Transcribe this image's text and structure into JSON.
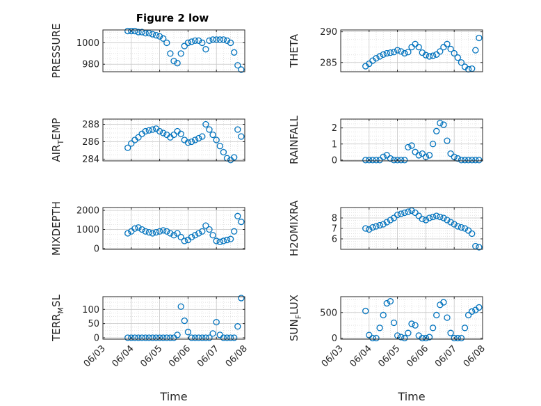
{
  "figure": {
    "title": "Figure 2 low",
    "marker_color": "#0072BD",
    "grid": true
  },
  "chart_data": [
    {
      "type": "scatter",
      "name_key": "pressure",
      "ylabel": "PRESSURE",
      "ylim": [
        973,
        1012
      ],
      "yticks": [
        980,
        1000
      ],
      "x": [
        "06/03 21:00",
        "06/04 00:00",
        "06/04 03:00",
        "06/04 06:00",
        "06/04 09:00",
        "06/04 12:00",
        "06/04 15:00",
        "06/04 18:00",
        "06/04 21:00",
        "06/05 00:00",
        "06/05 03:00",
        "06/05 06:00",
        "06/05 09:00",
        "06/05 12:00",
        "06/05 15:00",
        "06/05 18:00",
        "06/05 21:00",
        "06/06 00:00",
        "06/06 03:00",
        "06/06 06:00",
        "06/06 09:00",
        "06/06 12:00",
        "06/06 15:00",
        "06/06 18:00",
        "06/06 21:00",
        "06/07 00:00",
        "06/07 03:00",
        "06/07 06:00",
        "06/07 09:00",
        "06/07 12:00",
        "06/07 15:00",
        "06/07 18:00",
        "06/07 21:00"
      ],
      "y": [
        1011,
        1011,
        1011,
        1010,
        1010,
        1009,
        1009,
        1008,
        1007,
        1006,
        1004,
        1000,
        990,
        983,
        981,
        990,
        997,
        1000,
        1001,
        1002,
        1002,
        1000,
        994,
        1002,
        1003,
        1003,
        1003,
        1003,
        1002,
        1000,
        991,
        979,
        975
      ]
    },
    {
      "type": "scatter",
      "name_key": "theta",
      "ylabel": "THETA",
      "ylim": [
        283.5,
        290.3
      ],
      "yticks": [
        285,
        290
      ],
      "x": [
        "06/03 21:00",
        "06/04 00:00",
        "06/04 03:00",
        "06/04 06:00",
        "06/04 09:00",
        "06/04 12:00",
        "06/04 15:00",
        "06/04 18:00",
        "06/04 21:00",
        "06/05 00:00",
        "06/05 03:00",
        "06/05 06:00",
        "06/05 09:00",
        "06/05 12:00",
        "06/05 15:00",
        "06/05 18:00",
        "06/05 21:00",
        "06/06 00:00",
        "06/06 03:00",
        "06/06 06:00",
        "06/06 09:00",
        "06/06 12:00",
        "06/06 15:00",
        "06/06 18:00",
        "06/06 21:00",
        "06/07 00:00",
        "06/07 03:00",
        "06/07 06:00",
        "06/07 09:00",
        "06/07 12:00",
        "06/07 15:00",
        "06/07 18:00",
        "06/07 21:00"
      ],
      "y": [
        284.4,
        284.8,
        285.3,
        285.7,
        286.0,
        286.3,
        286.5,
        286.6,
        286.7,
        287.0,
        286.8,
        286.5,
        286.7,
        287.5,
        288.0,
        287.5,
        286.6,
        286.2,
        286.0,
        286.1,
        286.3,
        286.8,
        287.5,
        288.0,
        287.2,
        286.5,
        285.8,
        285.0,
        284.3,
        283.9,
        284.0,
        287.0,
        289.0
      ]
    },
    {
      "type": "scatter",
      "name_key": "air_temp",
      "ylabel": "AIR_TEMP",
      "ylabel_display": {
        "base": "AIR",
        "sub": "T",
        "rest": "EMP"
      },
      "ylim": [
        283.8,
        288.6
      ],
      "yticks": [
        284,
        286,
        288
      ],
      "x": [
        "06/03 21:00",
        "06/04 00:00",
        "06/04 03:00",
        "06/04 06:00",
        "06/04 09:00",
        "06/04 12:00",
        "06/04 15:00",
        "06/04 18:00",
        "06/04 21:00",
        "06/05 00:00",
        "06/05 03:00",
        "06/05 06:00",
        "06/05 09:00",
        "06/05 12:00",
        "06/05 15:00",
        "06/05 18:00",
        "06/05 21:00",
        "06/06 00:00",
        "06/06 03:00",
        "06/06 06:00",
        "06/06 09:00",
        "06/06 12:00",
        "06/06 15:00",
        "06/06 18:00",
        "06/06 21:00",
        "06/07 00:00",
        "06/07 03:00",
        "06/07 06:00",
        "06/07 09:00",
        "06/07 12:00",
        "06/07 15:00",
        "06/07 18:00",
        "06/07 21:00"
      ],
      "y": [
        285.3,
        285.8,
        286.2,
        286.5,
        286.9,
        287.2,
        287.3,
        287.4,
        287.5,
        287.2,
        287.0,
        286.8,
        286.5,
        286.8,
        287.2,
        286.9,
        286.2,
        285.9,
        286.0,
        286.2,
        286.4,
        286.6,
        288.0,
        287.4,
        286.8,
        286.2,
        285.5,
        284.8,
        284.1,
        283.9,
        284.2,
        287.4,
        286.6
      ]
    },
    {
      "type": "scatter",
      "name_key": "rainfall",
      "ylabel": "RAINFALL",
      "ylim": [
        -0.05,
        2.55
      ],
      "yticks": [
        0,
        1,
        2
      ],
      "x": [
        "06/03 21:00",
        "06/04 00:00",
        "06/04 03:00",
        "06/04 06:00",
        "06/04 09:00",
        "06/04 12:00",
        "06/04 15:00",
        "06/04 18:00",
        "06/04 21:00",
        "06/05 00:00",
        "06/05 03:00",
        "06/05 06:00",
        "06/05 09:00",
        "06/05 12:00",
        "06/05 15:00",
        "06/05 18:00",
        "06/05 21:00",
        "06/06 00:00",
        "06/06 03:00",
        "06/06 06:00",
        "06/06 09:00",
        "06/06 12:00",
        "06/06 15:00",
        "06/06 18:00",
        "06/06 21:00",
        "06/07 00:00",
        "06/07 03:00",
        "06/07 06:00",
        "06/07 09:00",
        "06/07 12:00",
        "06/07 15:00",
        "06/07 18:00",
        "06/07 21:00"
      ],
      "y": [
        0,
        0,
        0,
        0,
        0,
        0.2,
        0.3,
        0.1,
        0,
        0,
        0,
        0,
        0.8,
        0.9,
        0.5,
        0.3,
        0.4,
        0.2,
        0.3,
        1.0,
        1.8,
        2.3,
        2.2,
        1.2,
        0.4,
        0.2,
        0.1,
        0,
        0,
        0,
        0,
        0,
        0
      ]
    },
    {
      "type": "scatter",
      "name_key": "mixdepth",
      "ylabel": "MIXDEPTH",
      "ylim": [
        -40,
        2150
      ],
      "yticks": [
        0,
        1000,
        2000
      ],
      "x": [
        "06/03 21:00",
        "06/04 00:00",
        "06/04 03:00",
        "06/04 06:00",
        "06/04 09:00",
        "06/04 12:00",
        "06/04 15:00",
        "06/04 18:00",
        "06/04 21:00",
        "06/05 00:00",
        "06/05 03:00",
        "06/05 06:00",
        "06/05 09:00",
        "06/05 12:00",
        "06/05 15:00",
        "06/05 18:00",
        "06/05 21:00",
        "06/06 00:00",
        "06/06 03:00",
        "06/06 06:00",
        "06/06 09:00",
        "06/06 12:00",
        "06/06 15:00",
        "06/06 18:00",
        "06/06 21:00",
        "06/07 00:00",
        "06/07 03:00",
        "06/07 06:00",
        "06/07 09:00",
        "06/07 12:00",
        "06/07 15:00",
        "06/07 18:00",
        "06/07 21:00"
      ],
      "y": [
        800,
        900,
        1050,
        1100,
        1000,
        900,
        850,
        800,
        850,
        900,
        950,
        900,
        800,
        700,
        800,
        600,
        400,
        450,
        600,
        700,
        800,
        900,
        1200,
        1000,
        700,
        400,
        350,
        400,
        450,
        500,
        900,
        1700,
        1400
      ]
    },
    {
      "type": "scatter",
      "name_key": "h2omixra",
      "ylabel": "H2OMIXRA",
      "ylim": [
        5.0,
        9.0
      ],
      "yticks": [
        6,
        7,
        8
      ],
      "x": [
        "06/03 21:00",
        "06/04 00:00",
        "06/04 03:00",
        "06/04 06:00",
        "06/04 09:00",
        "06/04 12:00",
        "06/04 15:00",
        "06/04 18:00",
        "06/04 21:00",
        "06/05 00:00",
        "06/05 03:00",
        "06/05 06:00",
        "06/05 09:00",
        "06/05 12:00",
        "06/05 15:00",
        "06/05 18:00",
        "06/05 21:00",
        "06/06 00:00",
        "06/06 03:00",
        "06/06 06:00",
        "06/06 09:00",
        "06/06 12:00",
        "06/06 15:00",
        "06/06 18:00",
        "06/06 21:00",
        "06/07 00:00",
        "06/07 03:00",
        "06/07 06:00",
        "06/07 09:00",
        "06/07 12:00",
        "06/07 15:00",
        "06/07 18:00",
        "06/07 21:00"
      ],
      "y": [
        7.0,
        6.9,
        7.1,
        7.2,
        7.3,
        7.4,
        7.6,
        7.8,
        8.0,
        8.3,
        8.4,
        8.5,
        8.6,
        8.7,
        8.5,
        8.2,
        7.9,
        7.8,
        8.0,
        8.1,
        8.2,
        8.1,
        8.0,
        7.8,
        7.6,
        7.4,
        7.2,
        7.1,
        7.0,
        6.8,
        6.5,
        5.3,
        5.2
      ]
    },
    {
      "type": "scatter",
      "name_key": "terr_msl",
      "ylabel": "TERR_MSL",
      "ylabel_display": {
        "base": "TERR",
        "sub": "M",
        "rest": "SL"
      },
      "ylim": [
        -5,
        145
      ],
      "yticks": [
        0,
        50,
        100
      ],
      "x": [
        "06/03 21:00",
        "06/04 00:00",
        "06/04 03:00",
        "06/04 06:00",
        "06/04 09:00",
        "06/04 12:00",
        "06/04 15:00",
        "06/04 18:00",
        "06/04 21:00",
        "06/05 00:00",
        "06/05 03:00",
        "06/05 06:00",
        "06/05 09:00",
        "06/05 12:00",
        "06/05 15:00",
        "06/05 18:00",
        "06/05 21:00",
        "06/06 00:00",
        "06/06 03:00",
        "06/06 06:00",
        "06/06 09:00",
        "06/06 12:00",
        "06/06 15:00",
        "06/06 18:00",
        "06/06 21:00",
        "06/07 00:00",
        "06/07 03:00",
        "06/07 06:00",
        "06/07 09:00",
        "06/07 12:00",
        "06/07 15:00",
        "06/07 18:00",
        "06/07 21:00"
      ],
      "y": [
        0,
        0,
        0,
        0,
        0,
        0,
        0,
        0,
        0,
        0,
        0,
        0,
        0,
        0,
        10,
        110,
        60,
        20,
        0,
        0,
        0,
        0,
        0,
        0,
        15,
        55,
        10,
        0,
        0,
        0,
        0,
        40,
        140
      ]
    },
    {
      "type": "scatter",
      "name_key": "sun_flux",
      "ylabel": "SUN_FLUX",
      "ylabel_display": {
        "base": "SUN",
        "sub": "F",
        "rest": "LUX"
      },
      "ylim": [
        -20,
        810
      ],
      "yticks": [
        0,
        500
      ],
      "x": [
        "06/03 21:00",
        "06/04 00:00",
        "06/04 03:00",
        "06/04 06:00",
        "06/04 09:00",
        "06/04 12:00",
        "06/04 15:00",
        "06/04 18:00",
        "06/04 21:00",
        "06/05 00:00",
        "06/05 03:00",
        "06/05 06:00",
        "06/05 09:00",
        "06/05 12:00",
        "06/05 15:00",
        "06/05 18:00",
        "06/05 21:00",
        "06/06 00:00",
        "06/06 03:00",
        "06/06 06:00",
        "06/06 09:00",
        "06/06 12:00",
        "06/06 15:00",
        "06/06 18:00",
        "06/06 21:00",
        "06/07 00:00",
        "06/07 03:00",
        "06/07 06:00",
        "06/07 09:00",
        "06/07 12:00",
        "06/07 15:00",
        "06/07 18:00",
        "06/07 21:00"
      ],
      "y": [
        530,
        60,
        0,
        0,
        200,
        450,
        680,
        720,
        300,
        50,
        20,
        0,
        100,
        280,
        250,
        50,
        0,
        0,
        20,
        200,
        450,
        650,
        700,
        400,
        100,
        0,
        0,
        0,
        200,
        450,
        520,
        550,
        600
      ]
    }
  ],
  "x_axis": {
    "label": "Time",
    "ticks": [
      "06/03",
      "06/04",
      "06/05",
      "06/06",
      "06/07",
      "06/08"
    ]
  }
}
